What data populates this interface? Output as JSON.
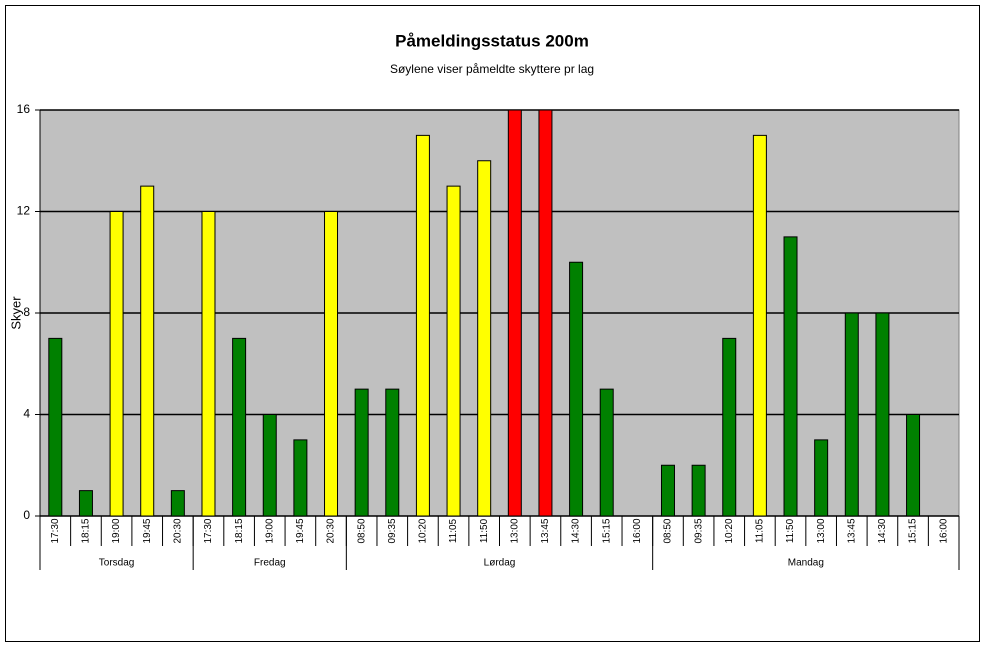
{
  "chart_data": {
    "type": "bar",
    "title": "Påmeldingsstatus 200m",
    "subtitle": "Søylene viser påmeldte skyttere pr lag",
    "y_label": "Skyer",
    "category_groups": [
      {
        "label": "Torsdag",
        "categories": [
          "17:30",
          "18:15",
          "19:00",
          "19:45",
          "20:30"
        ]
      },
      {
        "label": "Fredag",
        "categories": [
          "17:30",
          "18:15",
          "19:00",
          "19:45",
          "20:30"
        ]
      },
      {
        "label": "Lørdag",
        "categories": [
          "08:50",
          "09:35",
          "10:20",
          "11:05",
          "11:50",
          "13:00",
          "13:45",
          "14:30",
          "15:15",
          "16:00"
        ]
      },
      {
        "label": "Mandag",
        "categories": [
          "08:50",
          "09:35",
          "10:20",
          "11:05",
          "11:50",
          "13:00",
          "13:45",
          "14:30",
          "15:15",
          "16:00"
        ]
      }
    ],
    "values": [
      7,
      1,
      12,
      13,
      1,
      12,
      7,
      4,
      3,
      12,
      5,
      5,
      15,
      13,
      14,
      16,
      16,
      10,
      5,
      0,
      2,
      2,
      7,
      15,
      11,
      3,
      8,
      8,
      4,
      0
    ],
    "colors": [
      "#008000",
      "#008000",
      "#ffff00",
      "#ffff00",
      "#008000",
      "#ffff00",
      "#008000",
      "#008000",
      "#008000",
      "#ffff00",
      "#008000",
      "#008000",
      "#ffff00",
      "#ffff00",
      "#ffff00",
      "#ff0000",
      "#ff0000",
      "#008000",
      "#008000",
      "#008000",
      "#008000",
      "#008000",
      "#008000",
      "#ffff00",
      "#008000",
      "#008000",
      "#008000",
      "#008000",
      "#008000",
      "#008000"
    ],
    "ylim": [
      0,
      16
    ],
    "yticks": [
      0,
      4,
      8,
      12,
      16
    ],
    "grid": true,
    "plot_background": "#c0c0c0"
  }
}
